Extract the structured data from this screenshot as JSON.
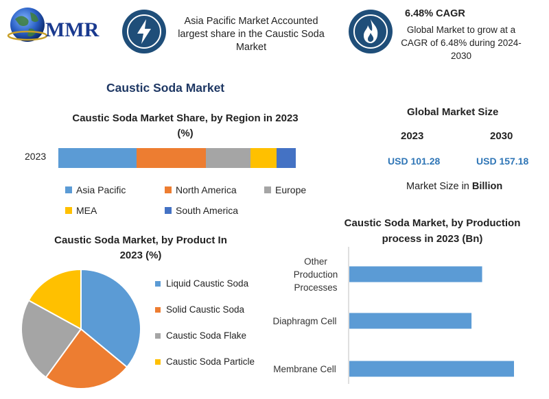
{
  "header": {
    "logo_text": "MMR",
    "badge1_icon": "lightning-icon",
    "badge1_text_lines": [
      "Asia Pacific Market Accounted",
      "largest share in the Caustic Soda",
      "Market"
    ],
    "badge2_icon": "flame-icon",
    "cagr_title": "6.48% CAGR",
    "cagr_text_lines": [
      "Global Market to grow at a",
      "CAGR of 6.48% during 2024-",
      "2030"
    ]
  },
  "main_title": "Caustic Soda Market",
  "market_size": {
    "title": "Global Market Size",
    "year1": "2023",
    "year2": "2030",
    "value1": "USD 101.28",
    "value2": "USD 157.18",
    "unit_prefix": "Market Size in ",
    "unit_bold": "Billion"
  },
  "colors": {
    "blue": "#5b9bd5",
    "orange": "#ed7d31",
    "gray": "#a5a5a5",
    "yellow": "#ffc000",
    "dark_blue": "#4472c4",
    "navy": "#1f4e79"
  },
  "chart_data": [
    {
      "type": "bar",
      "orientation": "horizontal-stacked",
      "title_lines": [
        "Caustic Soda Market Share, by Region in 2023",
        "(%)"
      ],
      "categories": [
        "2023"
      ],
      "series": [
        {
          "name": "Asia Pacific",
          "values": [
            33
          ],
          "color": "#5b9bd5"
        },
        {
          "name": "North America",
          "values": [
            29
          ],
          "color": "#ed7d31"
        },
        {
          "name": "Europe",
          "values": [
            19
          ],
          "color": "#a5a5a5"
        },
        {
          "name": "MEA",
          "values": [
            11
          ],
          "color": "#ffc000"
        },
        {
          "name": "South America",
          "values": [
            8
          ],
          "color": "#4472c4"
        }
      ],
      "legend": "bottom"
    },
    {
      "type": "pie",
      "title_lines": [
        "Caustic Soda Market, by Product In",
        "2023 (%)"
      ],
      "slices": [
        {
          "name": "Liquid Caustic Soda",
          "value": 36,
          "color": "#5b9bd5"
        },
        {
          "name": "Solid Caustic Soda",
          "value": 24,
          "color": "#ed7d31"
        },
        {
          "name": "Caustic Soda Flake",
          "value": 23,
          "color": "#a5a5a5"
        },
        {
          "name": "Caustic Soda Particle",
          "value": 17,
          "color": "#ffc000"
        }
      ],
      "legend": "right"
    },
    {
      "type": "bar",
      "orientation": "horizontal",
      "title_lines": [
        "Caustic Soda Market, by Production",
        "process in 2023 (Bn)"
      ],
      "categories": [
        {
          "name": "Other Production Processes",
          "label_lines": [
            "Other",
            "Production",
            "Processes"
          ]
        },
        {
          "name": "Diaphragm Cell",
          "label_lines": [
            "Diaphragm Cell"
          ]
        },
        {
          "name": "Membrane Cell",
          "label_lines": [
            "Membrane Cell"
          ]
        }
      ],
      "values": [
        25,
        23,
        31
      ],
      "xlim": [
        0,
        32
      ],
      "color": "#5b9bd5"
    }
  ]
}
